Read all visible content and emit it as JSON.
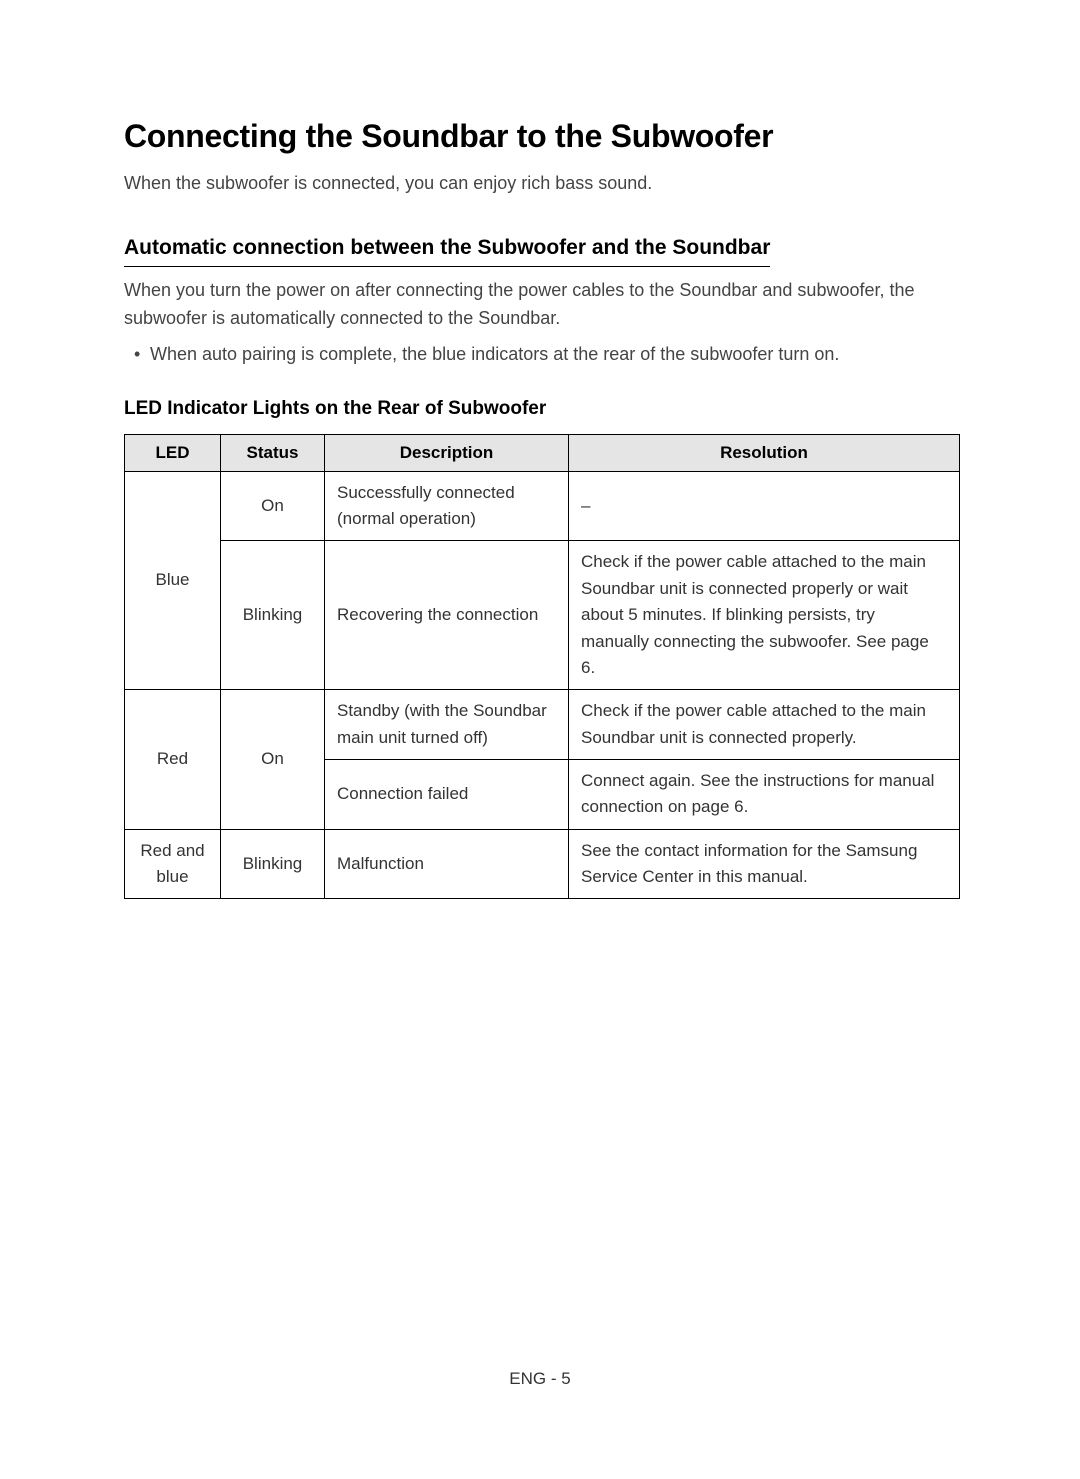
{
  "title": "Connecting the Soundbar to the Subwoofer",
  "intro": "When the subwoofer is connected, you can enjoy rich bass sound.",
  "section": {
    "heading": "Automatic connection between the Subwoofer and the Soundbar",
    "desc": "When you turn the power on after connecting the power cables to the Soundbar and subwoofer, the subwoofer is automatically connected to the Soundbar.",
    "bullet": "When auto pairing is complete, the blue indicators at the rear of the subwoofer turn on."
  },
  "table": {
    "title": "LED Indicator Lights on the Rear of Subwoofer",
    "headers": {
      "led": "LED",
      "status": "Status",
      "description": "Description",
      "resolution": "Resolution"
    },
    "rows": {
      "r1": {
        "led": "Blue",
        "status": "On",
        "desc": "Successfully connected (normal operation)",
        "res": "–"
      },
      "r2": {
        "status": "Blinking",
        "desc": "Recovering the connection",
        "res": "Check if the power cable attached to the main Soundbar unit is connected properly or wait about 5 minutes. If blinking persists, try manually connecting the subwoofer. See page 6."
      },
      "r3": {
        "led": "Red",
        "status": "On",
        "desc": "Standby (with the Soundbar main unit turned off)",
        "res": "Check if the power cable attached to the main Soundbar unit is connected properly."
      },
      "r4": {
        "desc": "Connection failed",
        "res": "Connect again. See the instructions for manual connection on page 6."
      },
      "r5": {
        "led": "Red and blue",
        "status": "Blinking",
        "desc": "Malfunction",
        "res": "See the contact information for the Samsung Service Center in this manual."
      }
    }
  },
  "footer": "ENG - 5"
}
